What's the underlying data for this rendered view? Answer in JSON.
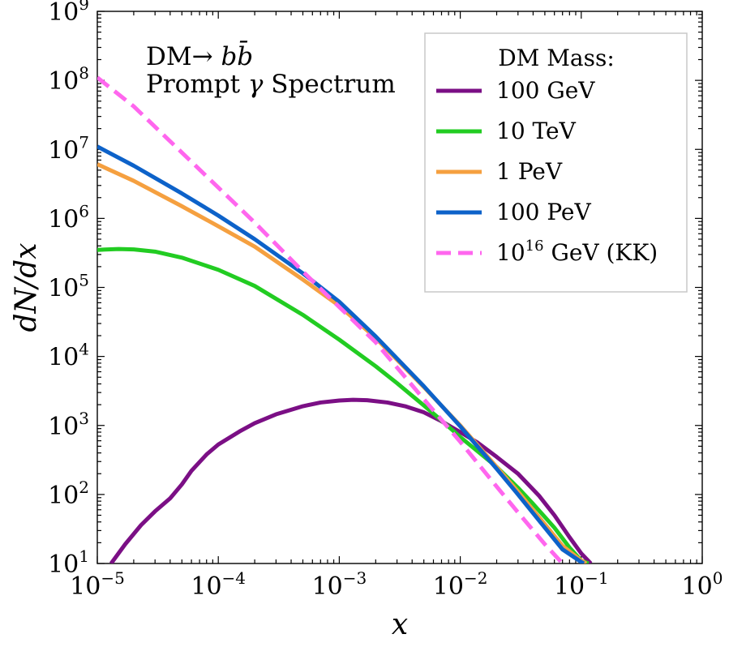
{
  "chart_data": {
    "type": "line",
    "title": "",
    "annotation": {
      "line1_prefix": "DM→ ",
      "line1_process": "b",
      "line1_process_bar": "b̄",
      "line2_prefix": "Prompt ",
      "line2_symbol": "γ",
      "line2_suffix": " Spectrum"
    },
    "xlabel": "x",
    "ylabel": "dN/dx",
    "x_scale": "log",
    "y_scale": "log",
    "xlim": [
      1e-05,
      1
    ],
    "ylim": [
      10,
      1000000000.0
    ],
    "x_ticks": [
      {
        "value": 1e-05,
        "base": "10",
        "exp": "−5"
      },
      {
        "value": 0.0001,
        "base": "10",
        "exp": "−4"
      },
      {
        "value": 0.001,
        "base": "10",
        "exp": "−3"
      },
      {
        "value": 0.01,
        "base": "10",
        "exp": "−2"
      },
      {
        "value": 0.1,
        "base": "10",
        "exp": "−1"
      },
      {
        "value": 1,
        "base": "10",
        "exp": "0"
      }
    ],
    "y_ticks": [
      {
        "value": 10,
        "base": "10",
        "exp": "1"
      },
      {
        "value": 100,
        "base": "10",
        "exp": "2"
      },
      {
        "value": 1000,
        "base": "10",
        "exp": "3"
      },
      {
        "value": 10000,
        "base": "10",
        "exp": "4"
      },
      {
        "value": 100000,
        "base": "10",
        "exp": "5"
      },
      {
        "value": 1000000,
        "base": "10",
        "exp": "6"
      },
      {
        "value": 10000000,
        "base": "10",
        "exp": "7"
      },
      {
        "value": 100000000,
        "base": "10",
        "exp": "8"
      },
      {
        "value": 1000000000,
        "base": "10",
        "exp": "9"
      }
    ],
    "legend": {
      "title": "DM Mass:",
      "location": "upper right"
    },
    "series": [
      {
        "name": "100 GeV",
        "color": "#7b0f85",
        "dash": "solid",
        "x": [
          1.3e-05,
          1.7e-05,
          2.3e-05,
          3e-05,
          4e-05,
          5e-05,
          6e-05,
          8e-05,
          0.0001,
          0.00015,
          0.0002,
          0.0003,
          0.0005,
          0.0007,
          0.001,
          0.0013,
          0.0017,
          0.0025,
          0.0035,
          0.005,
          0.007,
          0.01,
          0.014,
          0.02,
          0.03,
          0.045,
          0.06,
          0.08,
          0.1,
          0.12
        ],
        "y": [
          10,
          19,
          36,
          57,
          88,
          140,
          220,
          380,
          530,
          820,
          1080,
          1450,
          1900,
          2150,
          2300,
          2350,
          2320,
          2150,
          1900,
          1550,
          1150,
          800,
          560,
          350,
          200,
          95,
          50,
          24,
          14,
          10
        ]
      },
      {
        "name": "10 TeV",
        "color": "#22cc22",
        "dash": "solid",
        "x": [
          1e-05,
          1.5e-05,
          2e-05,
          3e-05,
          5e-05,
          0.0001,
          0.0002,
          0.0005,
          0.001,
          0.002,
          0.003,
          0.005,
          0.007,
          0.01,
          0.015,
          0.02,
          0.03,
          0.04,
          0.06,
          0.08,
          0.1,
          0.115
        ],
        "y": [
          350000,
          360000,
          355000,
          330000,
          270000,
          180000,
          105000,
          40000,
          17500,
          7200,
          4100,
          1950,
          1180,
          680,
          380,
          250,
          125,
          73,
          33,
          17,
          11,
          10
        ]
      },
      {
        "name": "1 PeV",
        "color": "#f5a040",
        "dash": "solid",
        "x": [
          1e-05,
          2e-05,
          5e-05,
          0.0001,
          0.0002,
          0.0005,
          0.001,
          0.002,
          0.005,
          0.01,
          0.02,
          0.03,
          0.05,
          0.07,
          0.1,
          0.11
        ],
        "y": [
          6100000,
          3500000,
          1500000,
          770000,
          390000,
          130000,
          54000,
          18500,
          3600,
          1000,
          250,
          110,
          37,
          18,
          11,
          10
        ]
      },
      {
        "name": "100 PeV",
        "color": "#0d62c9",
        "dash": "solid",
        "x": [
          1e-05,
          2e-05,
          5e-05,
          0.0001,
          0.0002,
          0.0005,
          0.001,
          0.002,
          0.005,
          0.01,
          0.02,
          0.03,
          0.05,
          0.07,
          0.1,
          0.105
        ],
        "y": [
          11000000,
          5800000,
          2300000,
          1100000,
          500000,
          160000,
          62000,
          19500,
          3700,
          970,
          235,
          100,
          33,
          16,
          10.5,
          10
        ]
      },
      {
        "name": "10",
        "name_exp": "16",
        "name_suffix": " GeV (KK)",
        "color": "#ff66ee",
        "dash": "dashed",
        "x": [
          1e-05,
          2e-05,
          5e-05,
          0.0001,
          0.0002,
          0.0005,
          0.001,
          0.002,
          0.005,
          0.01,
          0.02,
          0.03,
          0.05,
          0.07
        ],
        "y": [
          110000000,
          42000000,
          9000000,
          2800000,
          870000,
          170000,
          52000,
          16000,
          2400,
          580,
          130,
          55,
          19,
          10
        ]
      }
    ]
  }
}
